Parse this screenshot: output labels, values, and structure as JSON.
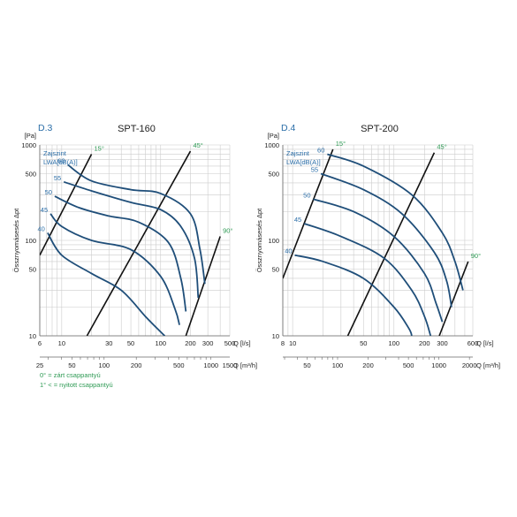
{
  "notes": {
    "line1": "0° = zárt csappantyú",
    "line2": "1° < = nyitott csappantyú"
  },
  "colors": {
    "curve": "#1f4e79",
    "system_line": "#111111",
    "grid": "#cccccc",
    "id_label": "#2b6ea8",
    "angle_label": "#2e9a54",
    "text": "#222222"
  },
  "chart_data": [
    {
      "type": "line",
      "id": "D.3",
      "title": "SPT-160",
      "ylabel": "Össznyomásesés Δpt",
      "y_unit": "[Pa]",
      "xlabel": "Q [l/s]",
      "x2label": "Q [m³/h]",
      "x_scale": "log",
      "y_scale": "log",
      "xlim": [
        6,
        500
      ],
      "ylim": [
        10,
        1000
      ],
      "grid": true,
      "x_ticks": [
        "6",
        "10",
        "30",
        "50",
        "100",
        "200",
        "300",
        "500"
      ],
      "x2_ticks": [
        "25",
        "50",
        "100",
        "200",
        "500",
        "1000",
        "1500"
      ],
      "y_ticks": [
        "10",
        "50",
        "100",
        "500",
        "1000"
      ],
      "legend_title": "Zajszint",
      "legend_sub": "LWA[dB(A)]",
      "noise_labels": [
        "40",
        "45",
        "50",
        "55",
        "60"
      ],
      "angle_labels": [
        "15°",
        "45°",
        "90°"
      ],
      "series": [
        {
          "name": "40",
          "x": [
            7.2,
            10,
            20,
            40,
            70,
            100,
            110
          ],
          "y": [
            120,
            70,
            45,
            30,
            16,
            11,
            10
          ]
        },
        {
          "name": "45",
          "x": [
            7.7,
            10,
            20,
            50,
            100,
            140,
            155
          ],
          "y": [
            190,
            140,
            100,
            80,
            42,
            19,
            13
          ]
        },
        {
          "name": "50",
          "x": [
            8.5,
            15,
            30,
            60,
            120,
            160,
            180
          ],
          "y": [
            290,
            220,
            180,
            155,
            95,
            40,
            18
          ]
        },
        {
          "name": "55",
          "x": [
            10.5,
            20,
            50,
            100,
            160,
            220,
            240
          ],
          "y": [
            410,
            330,
            250,
            210,
            140,
            65,
            25
          ]
        },
        {
          "name": "60",
          "x": [
            11.5,
            20,
            50,
            100,
            200,
            250,
            280
          ],
          "y": [
            620,
            420,
            340,
            310,
            190,
            80,
            35
          ]
        }
      ],
      "system_lines": [
        {
          "label": "15°",
          "x": [
            6,
            20
          ],
          "y": [
            70,
            800
          ]
        },
        {
          "label": "45°",
          "x": [
            18,
            200
          ],
          "y": [
            10,
            860
          ]
        },
        {
          "label": "90°",
          "x": [
            180,
            400
          ],
          "y": [
            10,
            110
          ]
        }
      ]
    },
    {
      "type": "line",
      "id": "D.4",
      "title": "SPT-200",
      "ylabel": "Össznyomásesés Δpt",
      "y_unit": "[Pa]",
      "xlabel": "Q [l/s]",
      "x2label": "Q [m³/h]",
      "x_scale": "log",
      "y_scale": "log",
      "xlim": [
        8,
        600
      ],
      "ylim": [
        10,
        1000
      ],
      "grid": true,
      "x_ticks": [
        "8",
        "10",
        "50",
        "100",
        "200",
        "300",
        "600"
      ],
      "x2_ticks": [
        "50",
        "100",
        "200",
        "500",
        "1000",
        "2000"
      ],
      "y_ticks": [
        "10",
        "50",
        "100",
        "500",
        "1000"
      ],
      "legend_title": "Zajszint",
      "legend_sub": "LWA[dB(A)]",
      "noise_labels": [
        "40",
        "45",
        "50",
        "55",
        "60"
      ],
      "angle_labels": [
        "15°",
        "45°",
        "90°"
      ],
      "series": [
        {
          "name": "40",
          "x": [
            10.5,
            20,
            50,
            100,
            140,
            150
          ],
          "y": [
            70,
            60,
            40,
            20,
            12,
            10
          ]
        },
        {
          "name": "45",
          "x": [
            13,
            30,
            80,
            150,
            200,
            230
          ],
          "y": [
            150,
            110,
            65,
            30,
            16,
            10
          ]
        },
        {
          "name": "50",
          "x": [
            16,
            40,
            100,
            200,
            260,
            300
          ],
          "y": [
            270,
            200,
            110,
            45,
            22,
            14
          ]
        },
        {
          "name": "55",
          "x": [
            19,
            50,
            120,
            250,
            330,
            370
          ],
          "y": [
            500,
            340,
            190,
            75,
            38,
            20
          ]
        },
        {
          "name": "60",
          "x": [
            22,
            50,
            150,
            300,
            400,
            480
          ],
          "y": [
            800,
            600,
            300,
            120,
            60,
            30
          ]
        }
      ],
      "system_lines": [
        {
          "label": "15°",
          "x": [
            8,
            25
          ],
          "y": [
            40,
            900
          ]
        },
        {
          "label": "45°",
          "x": [
            35,
            250
          ],
          "y": [
            10,
            830
          ]
        },
        {
          "label": "90°",
          "x": [
            280,
            540
          ],
          "y": [
            10,
            60
          ]
        }
      ]
    }
  ]
}
